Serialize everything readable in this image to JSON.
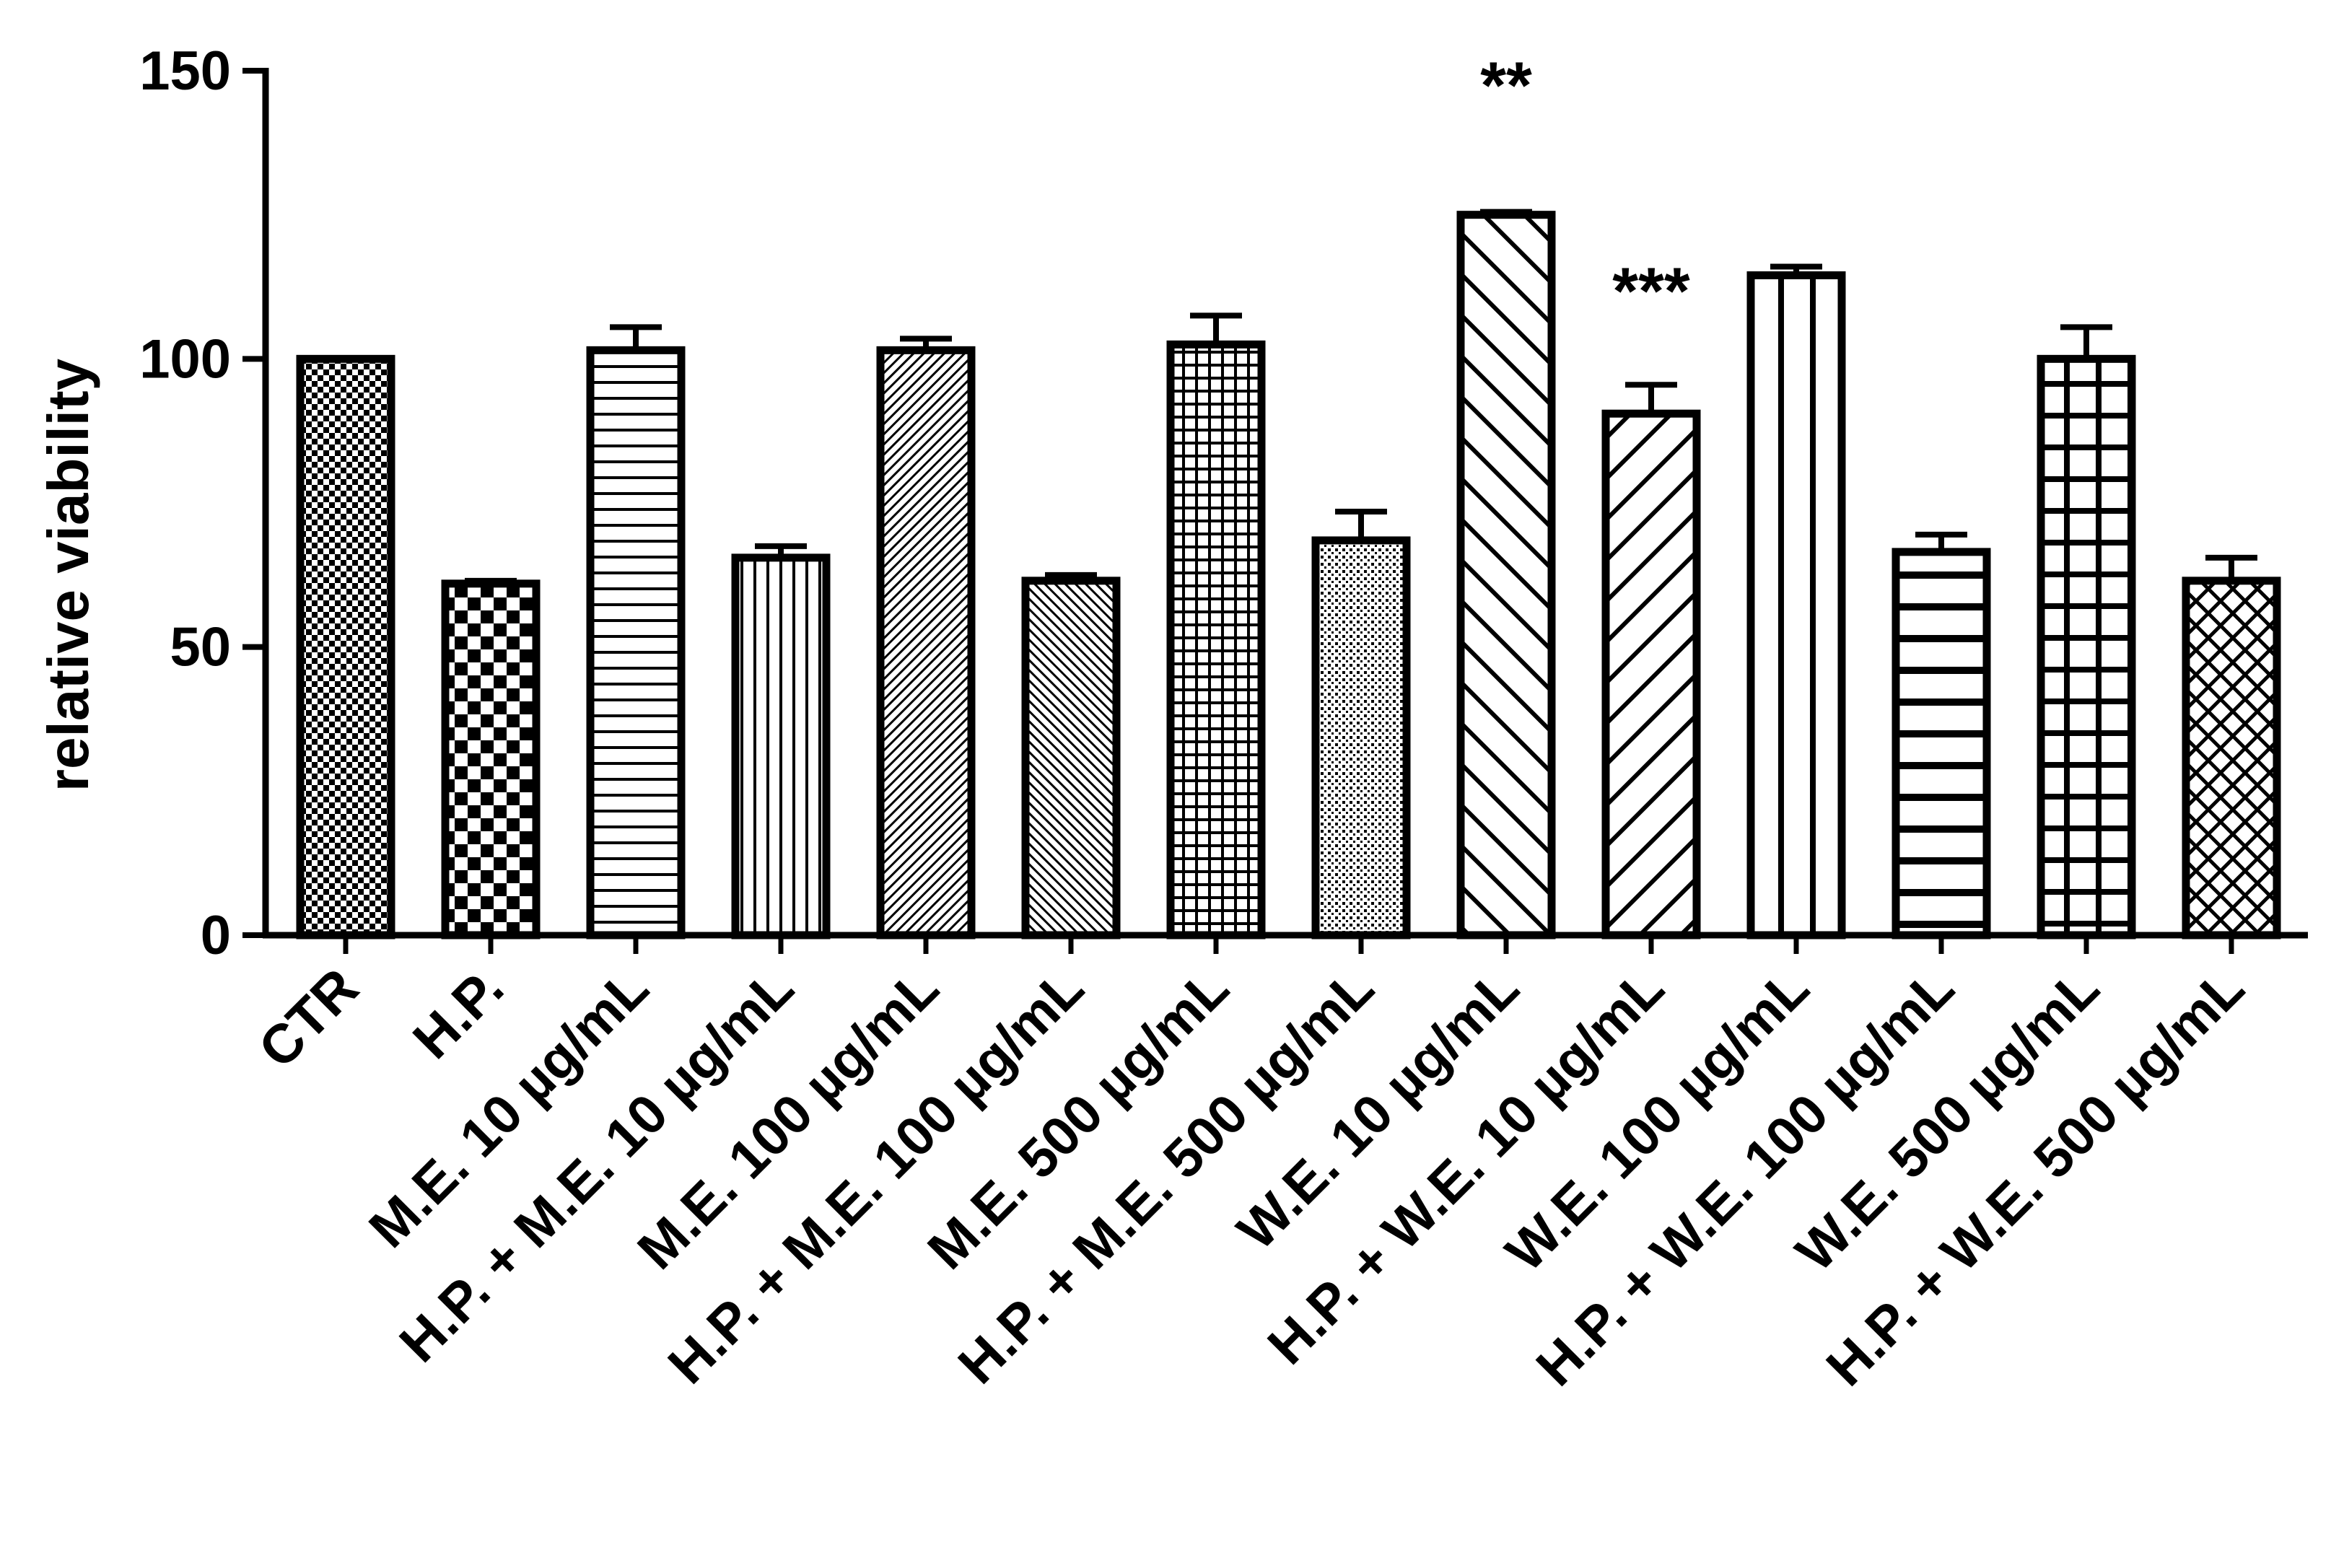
{
  "chart_data": {
    "type": "bar",
    "title": "",
    "xlabel": "",
    "ylabel": "relative viability",
    "ylim": [
      0,
      150
    ],
    "yticks": [
      0,
      50,
      100,
      150
    ],
    "grid": false,
    "legend": "none",
    "categories": [
      "CTR",
      "H.P.",
      "M.E. 10 µg/mL",
      "H.P. + M.E. 10 µg/mL",
      "M.E. 100 µg/mL",
      "H.P. + M.E. 100 µg/mL",
      "M.E. 500 µg/mL",
      "H.P. + M.E. 500 µg/mL",
      "W.E. 10 µg/mL",
      "H.P. + W.E. 10 µg/mL",
      "W.E. 100 µg/mL",
      "H.P. + W.E. 100 µg/mL",
      "W.E. 500 µg/mL",
      "H.P. + W.E. 500 µg/mL"
    ],
    "values": [
      100,
      61,
      101.5,
      65.5,
      101.5,
      61.5,
      102.5,
      68.5,
      125,
      90.5,
      114.5,
      66.5,
      100,
      61.5
    ],
    "errors": [
      0,
      0.5,
      4,
      2,
      2,
      1,
      5,
      5,
      0.5,
      5,
      1.5,
      3,
      5.5,
      4
    ],
    "patterns": [
      "checker-fine",
      "checker-coarse",
      "hlines-fine",
      "vlines-fine",
      "diag-up-fine",
      "diag-down-fine",
      "grid-fine",
      "dots",
      "diag-down-wide",
      "diag-up-wide",
      "vlines-wide",
      "hlines-wide",
      "grid-wide",
      "crosshatch"
    ],
    "annotations": [
      {
        "category_index": 8,
        "text": "**"
      },
      {
        "category_index": 9,
        "text": "***"
      }
    ]
  }
}
